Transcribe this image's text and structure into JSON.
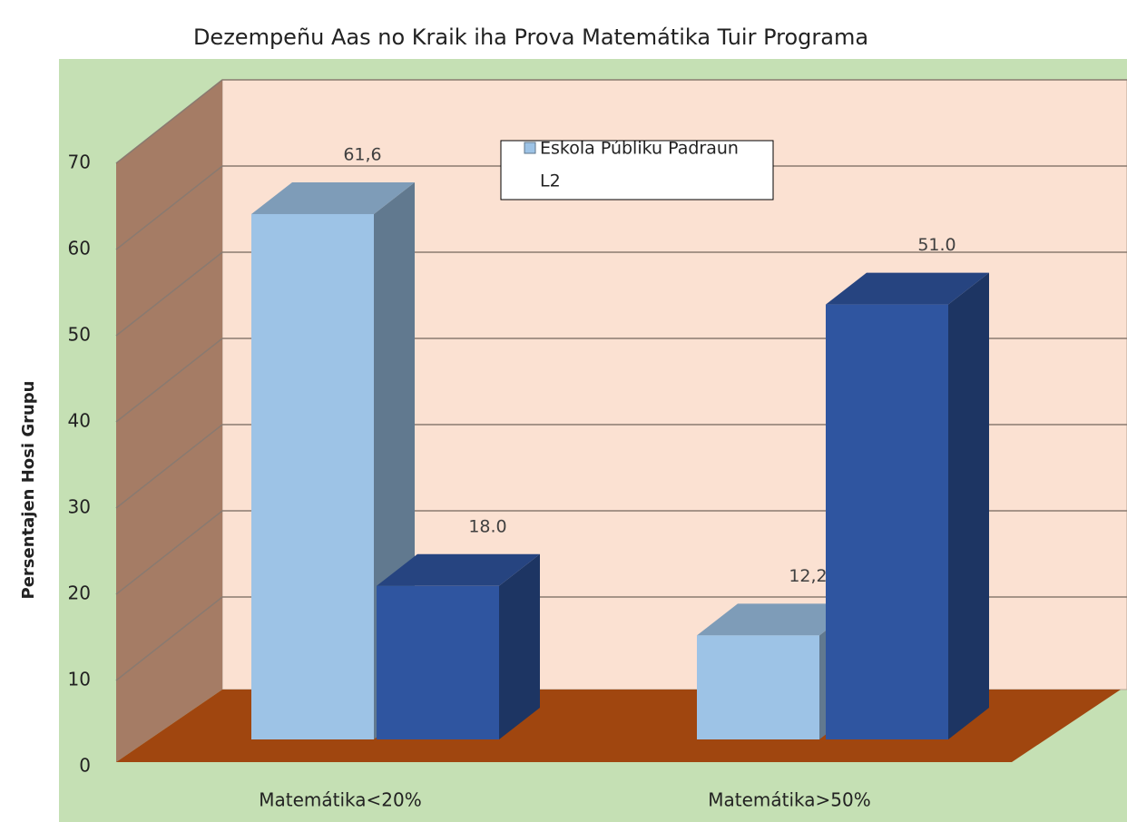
{
  "chart_data": {
    "type": "bar3d",
    "title": "Dezempeñu Aas no Kraik iha Prova Matemátika Tuir Programa",
    "y_label": "Persentajen Hosi Grupu",
    "categories": [
      "Matemátika<20%",
      "Matemátika>50%"
    ],
    "series": [
      {
        "name": "Eskola Públiku Padraun",
        "color": "#9dc3e6",
        "values": [
          61.6,
          12.2
        ],
        "value_labels": [
          "61,6",
          "12,2"
        ]
      },
      {
        "name": "L2",
        "color": "#2f55a0",
        "values": [
          18.0,
          51.0
        ],
        "value_labels": [
          "18.0",
          "51.0"
        ]
      }
    ],
    "ylim": [
      0,
      70
    ],
    "yticks": [
      0,
      10,
      20,
      30,
      40,
      50,
      60,
      70
    ],
    "grid": true
  }
}
